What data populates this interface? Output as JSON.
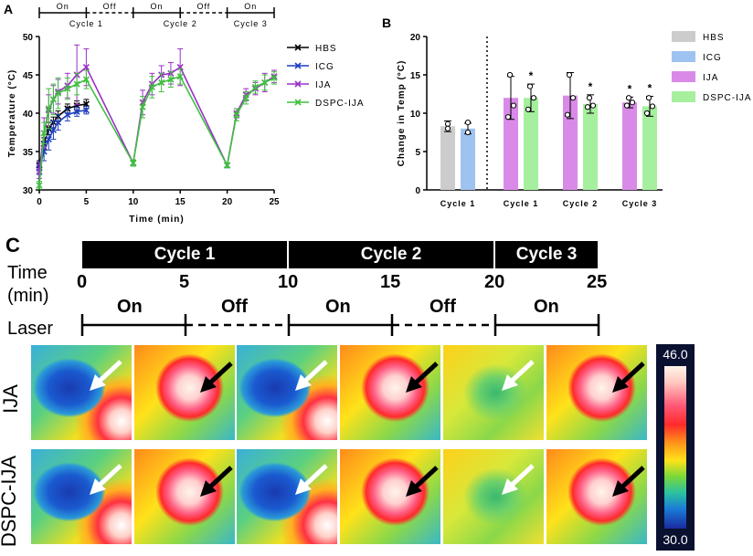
{
  "panels": {
    "a": "A",
    "b": "B",
    "c": "C"
  },
  "panel_a": {
    "schedule": [
      {
        "label": "On",
        "cycle": "Cycle 1",
        "start": 0,
        "end": 5,
        "state": "on"
      },
      {
        "label": "Off",
        "cycle": "",
        "start": 5,
        "end": 10,
        "state": "off"
      },
      {
        "label": "On",
        "cycle": "Cycle 2",
        "start": 10,
        "end": 15,
        "state": "on"
      },
      {
        "label": "Off",
        "cycle": "",
        "start": 15,
        "end": 20,
        "state": "off"
      },
      {
        "label": "On",
        "cycle": "Cycle 3",
        "start": 20,
        "end": 25,
        "state": "on"
      }
    ]
  },
  "panel_c": {
    "cycles": [
      "Cycle 1",
      "Cycle 2",
      "Cycle 3"
    ],
    "time_label_1": "Time",
    "time_label_2": "(min)",
    "laser_label": "Laser",
    "ticks": [
      "0",
      "5",
      "10",
      "15",
      "20",
      "25"
    ],
    "states": [
      "On",
      "Off",
      "On",
      "Off",
      "On"
    ],
    "rows": [
      "IJA",
      "DSPC-IJA"
    ],
    "scale_max": "46.0",
    "scale_min": "30.0",
    "images": [
      [
        "cool",
        "hot",
        "cool",
        "hot",
        "mid",
        "hot"
      ],
      [
        "cool",
        "hot",
        "cool",
        "hot",
        "mid",
        "hot"
      ]
    ]
  },
  "chart_data": [
    {
      "type": "line",
      "title": "",
      "xlabel": "Time (min)",
      "ylabel": "Temperature (°C)",
      "xlim": [
        0,
        25
      ],
      "ylim": [
        30,
        50
      ],
      "xticks": [
        0,
        5,
        10,
        15,
        20,
        25
      ],
      "yticks": [
        30,
        35,
        40,
        45,
        50
      ],
      "legend": "top-right",
      "series": [
        {
          "name": "HBS",
          "color": "#000000",
          "segments": [
            {
              "x": [
                0,
                0.5,
                1,
                1.5,
                2,
                3,
                4,
                5
              ],
              "y": [
                33.2,
                36.0,
                38.0,
                38.8,
                39.6,
                40.6,
                41.0,
                41.2
              ],
              "err": [
                0.6,
                0.8,
                0.8,
                0.7,
                0.7,
                0.6,
                0.6,
                0.6
              ]
            }
          ]
        },
        {
          "name": "ICG",
          "color": "#1f3fbf",
          "segments": [
            {
              "x": [
                0,
                0.5,
                1,
                1.5,
                2,
                3,
                4,
                5
              ],
              "y": [
                32.8,
                35.0,
                36.6,
                37.8,
                38.8,
                39.8,
                40.2,
                40.4
              ],
              "err": [
                0.8,
                1.2,
                1.4,
                1.2,
                1.0,
                0.8,
                0.6,
                0.5
              ]
            }
          ]
        },
        {
          "name": "IJA",
          "color": "#9b30c8",
          "segments": [
            {
              "x": [
                0,
                0.5,
                1,
                1.5,
                2,
                3,
                4,
                5,
                10
              ],
              "y": [
                32.4,
                37.4,
                40.4,
                41.8,
                42.8,
                43.6,
                45.0,
                46.0,
                33.5
              ],
              "err": [
                0.9,
                2.0,
                2.0,
                1.8,
                1.6,
                1.6,
                3.9,
                2.4,
                0.4
              ]
            },
            {
              "x": [
                10,
                11,
                12,
                13,
                14,
                15,
                20
              ],
              "y": [
                33.5,
                41.4,
                43.8,
                45.0,
                45.2,
                46.0,
                33.2
              ],
              "err": [
                0.4,
                1.6,
                1.4,
                1.2,
                1.4,
                2.4,
                0.3
              ]
            },
            {
              "x": [
                20,
                21,
                22,
                23,
                24,
                25
              ],
              "y": [
                33.2,
                40.0,
                42.4,
                43.2,
                44.0,
                44.8
              ],
              "err": [
                0.3,
                0.6,
                0.8,
                0.8,
                1.2,
                0.8
              ]
            }
          ]
        },
        {
          "name": "DSPC-IJA",
          "color": "#3fbf3f",
          "segments": [
            {
              "x": [
                0,
                0.5,
                1,
                1.5,
                2,
                3,
                4,
                5,
                10
              ],
              "y": [
                30.6,
                37.4,
                40.6,
                41.8,
                42.6,
                43.2,
                43.8,
                44.4,
                33.5
              ],
              "err": [
                0.5,
                1.4,
                2.6,
                2.0,
                2.0,
                1.4,
                1.4,
                1.2,
                0.4
              ]
            },
            {
              "x": [
                10,
                11,
                12,
                13,
                14,
                15,
                20
              ],
              "y": [
                33.5,
                40.8,
                43.4,
                44.0,
                44.4,
                44.8,
                33.2
              ],
              "err": [
                0.4,
                1.4,
                1.4,
                1.2,
                1.0,
                1.0,
                0.3
              ]
            },
            {
              "x": [
                20,
                21,
                22,
                23,
                24,
                25
              ],
              "y": [
                33.2,
                39.8,
                42.0,
                43.4,
                44.0,
                44.6
              ],
              "err": [
                0.3,
                0.8,
                0.8,
                0.8,
                1.0,
                0.8
              ]
            }
          ]
        }
      ]
    },
    {
      "type": "bar",
      "title": "",
      "xlabel": "",
      "ylabel": "Change in Temp (°C)",
      "ylim": [
        0,
        20
      ],
      "yticks": [
        0,
        5,
        10,
        15,
        20
      ],
      "legend": "right",
      "legend_entries": [
        {
          "name": "HBS",
          "color": "#cccccc"
        },
        {
          "name": "ICG",
          "color": "#9ec3f0"
        },
        {
          "name": "IJA",
          "color": "#d98ae8"
        },
        {
          "name": "DSPC-IJA",
          "color": "#a6ef9f"
        }
      ],
      "groups": [
        {
          "label": "Cycle 1",
          "bars": [
            {
              "series": "HBS",
              "value": 8.3,
              "err": 0.7,
              "points": [
                8.6,
                8.0
              ],
              "star": ""
            },
            {
              "series": "ICG",
              "value": 8.0,
              "err": 0.7,
              "points": [
                8.8,
                7.5
              ],
              "star": ""
            }
          ]
        },
        {
          "label": "Cycle 1",
          "bars": [
            {
              "series": "IJA",
              "value": 12.0,
              "err": 2.8,
              "points": [
                15.0,
                11.0,
                9.5
              ],
              "star": ""
            },
            {
              "series": "DSPC-IJA",
              "value": 12.0,
              "err": 1.8,
              "points": [
                13.5,
                12.0,
                10.5
              ],
              "star": "*"
            }
          ]
        },
        {
          "label": "Cycle 2",
          "bars": [
            {
              "series": "IJA",
              "value": 12.3,
              "err": 3.0,
              "points": [
                15.0,
                12.0,
                9.8
              ],
              "star": ""
            },
            {
              "series": "DSPC-IJA",
              "value": 11.2,
              "err": 1.2,
              "points": [
                12.0,
                11.0,
                10.8
              ],
              "star": "*"
            }
          ]
        },
        {
          "label": "Cycle 3",
          "bars": [
            {
              "series": "IJA",
              "value": 11.4,
              "err": 0.7,
              "points": [
                12.0,
                11.4,
                11.0
              ],
              "star": "*"
            },
            {
              "series": "DSPC-IJA",
              "value": 10.9,
              "err": 1.3,
              "points": [
                12.0,
                10.9,
                10.0
              ],
              "star": "*"
            }
          ]
        }
      ]
    }
  ]
}
